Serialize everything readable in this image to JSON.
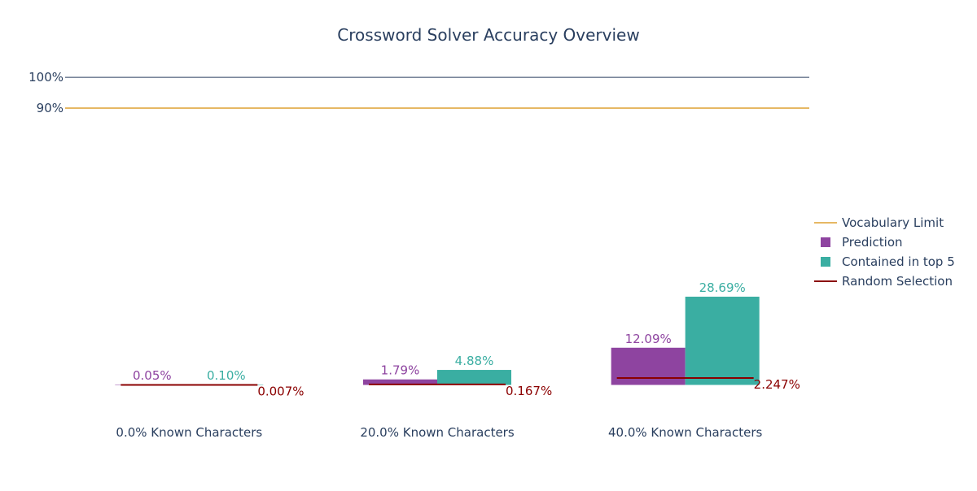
{
  "chart_data": {
    "type": "bar",
    "title": "Crossword Solver Accuracy Overview",
    "categories": [
      "0.0% Known Characters",
      "20.0% Known Characters",
      "40.0% Known Characters"
    ],
    "y_ticks": [
      {
        "value": 100,
        "label": "100%"
      },
      {
        "value": 90,
        "label": "90%"
      }
    ],
    "ylim": [
      -7,
      104
    ],
    "grid": false,
    "legend_position": "right",
    "series": [
      {
        "name": "Prediction",
        "kind": "bar",
        "color": "#8e44a0",
        "values": [
          0.05,
          1.79,
          12.09
        ],
        "labels": [
          "0.05%",
          "1.79%",
          "12.09%"
        ]
      },
      {
        "name": "Contained in top 5",
        "kind": "bar",
        "color": "#3aaea2",
        "values": [
          0.1,
          4.88,
          28.69
        ],
        "labels": [
          "0.10%",
          "4.88%",
          "28.69%"
        ]
      },
      {
        "name": "Random Selection",
        "kind": "segment",
        "color": "#8b0000",
        "values": [
          0.007,
          0.167,
          2.247
        ],
        "labels": [
          "0.007%",
          "0.167%",
          "2.247%"
        ]
      }
    ],
    "reference_lines": [
      {
        "name": "Vocabulary Limit",
        "value": 90,
        "color": "#e6b864"
      },
      {
        "value": 100,
        "color": "#2a3f5f"
      }
    ],
    "legend_order": [
      "Vocabulary Limit",
      "Prediction",
      "Contained in top 5",
      "Random Selection"
    ],
    "text_color": "#2a3f5f"
  }
}
